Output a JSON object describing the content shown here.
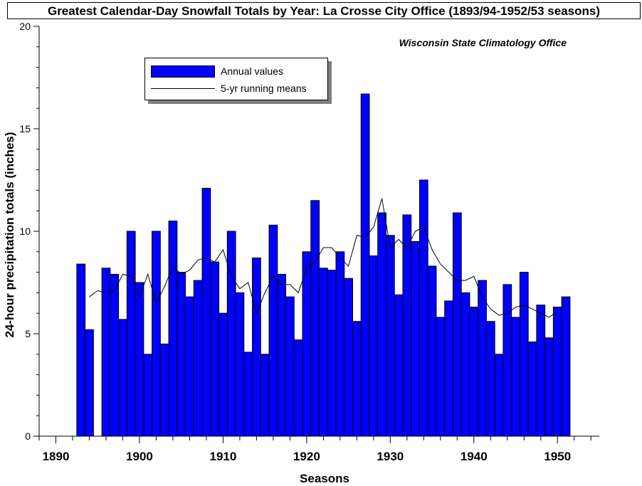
{
  "chart_data": {
    "type": "bar",
    "title": "Greatest Calendar-Day Snowfall Totals by Year: La Crosse City Office (1893/94-1952/53 seasons)",
    "subtitle": "Wisconsin State Climatology Office",
    "xlabel": "Seasons",
    "ylabel": "24-hour precipitation totals (inches)",
    "xlim": [
      1888,
      1955
    ],
    "ylim": [
      0,
      20
    ],
    "x_ticks": [
      1890,
      1900,
      1910,
      1920,
      1930,
      1940,
      1950
    ],
    "y_ticks": [
      0,
      5,
      10,
      15,
      20
    ],
    "legend": {
      "position": "top-left",
      "items": [
        "Annual values",
        "5-yr running means"
      ]
    },
    "colors": {
      "bars": "#0000ff",
      "line": "#000000"
    },
    "series": [
      {
        "name": "Annual values",
        "type": "bar",
        "x": [
          1893,
          1894,
          1895,
          1896,
          1897,
          1898,
          1899,
          1900,
          1901,
          1902,
          1903,
          1904,
          1905,
          1906,
          1907,
          1908,
          1909,
          1910,
          1911,
          1912,
          1913,
          1914,
          1915,
          1916,
          1917,
          1918,
          1919,
          1920,
          1921,
          1922,
          1923,
          1924,
          1925,
          1926,
          1927,
          1928,
          1929,
          1930,
          1931,
          1932,
          1933,
          1934,
          1935,
          1936,
          1937,
          1938,
          1939,
          1940,
          1941,
          1942,
          1943,
          1944,
          1945,
          1946,
          1947,
          1948,
          1949,
          1950,
          1951
        ],
        "values": [
          8.4,
          5.2,
          null,
          8.2,
          7.9,
          5.7,
          10.0,
          7.5,
          4.0,
          10.0,
          4.5,
          10.5,
          8.0,
          6.8,
          7.6,
          12.1,
          8.5,
          6.0,
          10.0,
          7.0,
          4.1,
          8.7,
          4.0,
          10.3,
          7.9,
          6.8,
          4.7,
          9.0,
          11.5,
          8.2,
          8.1,
          9.0,
          7.7,
          5.6,
          16.7,
          8.8,
          10.9,
          9.8,
          6.9,
          10.8,
          9.5,
          12.5,
          8.3,
          5.8,
          6.6,
          10.9,
          7.0,
          6.3,
          7.6,
          5.6,
          4.0,
          7.4,
          5.8,
          8.0,
          4.6,
          6.4,
          4.8,
          6.3,
          6.8
        ]
      },
      {
        "name": "5-yr running means",
        "type": "line",
        "x": [
          1894,
          1895,
          1896,
          1897,
          1898,
          1899,
          1900,
          1901,
          1902,
          1903,
          1904,
          1905,
          1906,
          1907,
          1908,
          1909,
          1910,
          1911,
          1912,
          1913,
          1914,
          1915,
          1916,
          1917,
          1918,
          1919,
          1920,
          1921,
          1922,
          1923,
          1924,
          1925,
          1926,
          1927,
          1928,
          1929,
          1930,
          1931,
          1932,
          1933,
          1934,
          1935,
          1936,
          1937,
          1938,
          1939,
          1940,
          1941,
          1942,
          1943,
          1944,
          1945,
          1946,
          1947,
          1948,
          1949,
          1950
        ],
        "values": [
          6.8,
          7.1,
          7.0,
          7.1,
          7.9,
          7.8,
          6.8,
          7.9,
          6.5,
          7.3,
          8.3,
          7.9,
          8.1,
          8.6,
          8.7,
          8.5,
          9.1,
          7.8,
          7.2,
          7.5,
          6.0,
          7.0,
          7.8,
          7.4,
          7.4,
          7.0,
          8.2,
          8.5,
          9.2,
          9.2,
          8.7,
          8.3,
          9.8,
          9.7,
          10.2,
          11.6,
          9.2,
          9.6,
          9.2,
          10.0,
          10.2,
          9.1,
          8.4,
          8.0,
          7.6,
          7.6,
          7.8,
          6.8,
          6.2,
          5.9,
          6.0,
          6.3,
          6.4,
          6.2,
          6.0,
          5.8,
          6.1
        ]
      }
    ]
  }
}
